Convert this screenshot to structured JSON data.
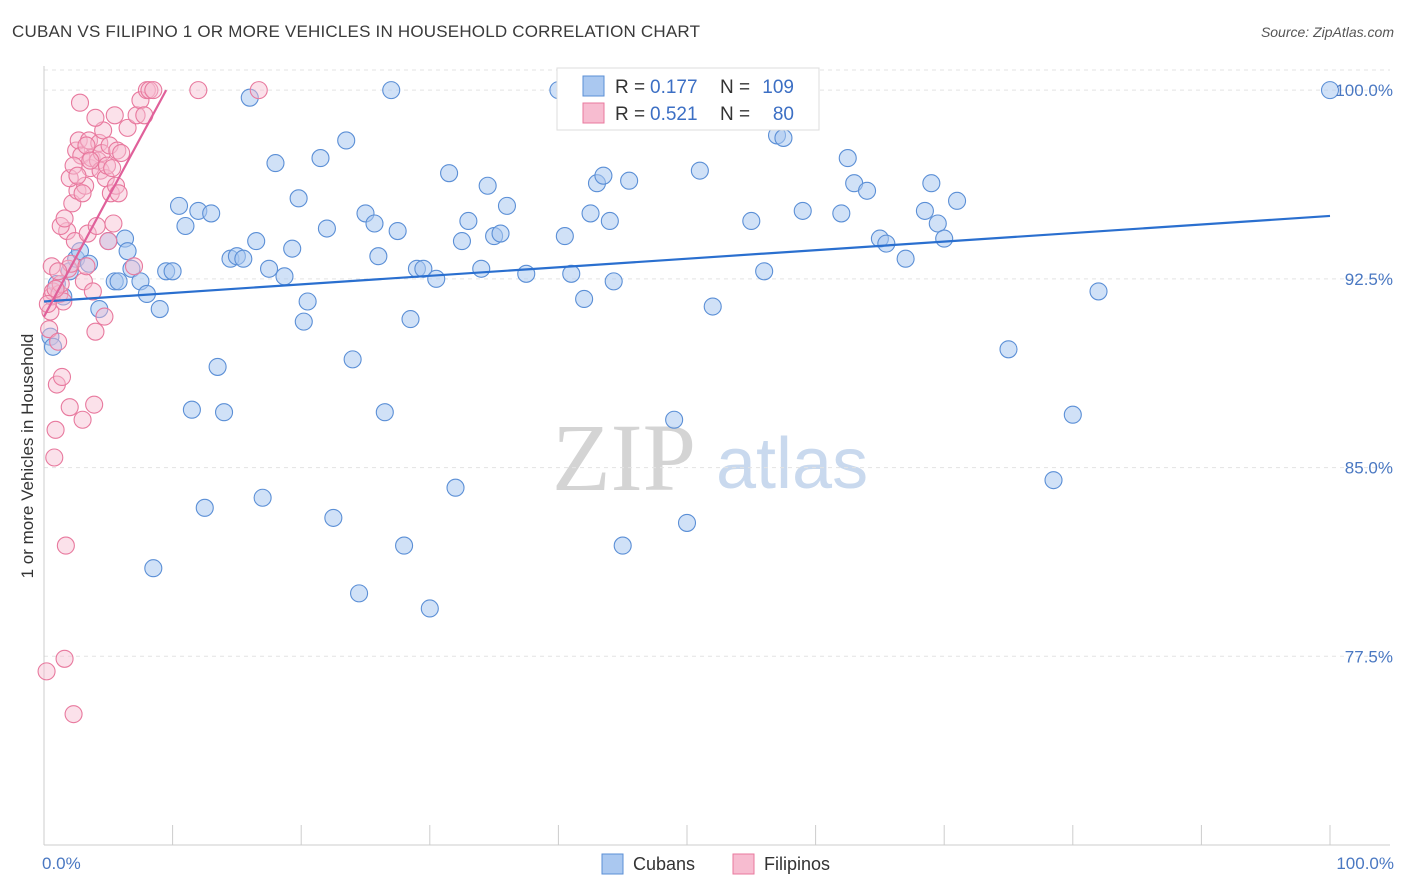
{
  "title": "CUBAN VS FILIPINO 1 OR MORE VEHICLES IN HOUSEHOLD CORRELATION CHART",
  "source": "Source: ZipAtlas.com",
  "watermark": {
    "zip": "ZIP",
    "atlas": "atlas"
  },
  "colors": {
    "blue_fill": "#aac8f0",
    "blue_stroke": "#5b8fd6",
    "blue_line": "#2a6fcf",
    "pink_fill": "#f7bcd0",
    "pink_stroke": "#e8799e",
    "pink_line": "#e0609a",
    "grid": "#e3e3e3",
    "axis_text": "#4a78c2"
  },
  "legend": {
    "rows": [
      {
        "r_label": "R =",
        "r_value": "0.177",
        "n_label": "N =",
        "n_value": "109"
      },
      {
        "r_label": "R =",
        "r_value": "0.521",
        "n_label": "N =",
        "n_value": "80"
      }
    ]
  },
  "bottom_legend": [
    "Cubans",
    "Filipinos"
  ],
  "chart_data": {
    "type": "scatter",
    "title": "CUBAN VS FILIPINO 1 OR MORE VEHICLES IN HOUSEHOLD CORRELATION CHART",
    "xlabel": "",
    "ylabel": "1 or more Vehicles in Household",
    "xlim": [
      0,
      100
    ],
    "ylim": [
      70.0,
      100.8
    ],
    "x_ticks": [
      "0.0%",
      "100.0%"
    ],
    "y_ticks": [
      {
        "value": 100.0,
        "label": "100.0%"
      },
      {
        "value": 92.5,
        "label": "92.5%"
      },
      {
        "value": 85.0,
        "label": "85.0%"
      },
      {
        "value": 77.5,
        "label": "77.5%"
      }
    ],
    "grid": true,
    "legend_position": "top-center",
    "series": [
      {
        "name": "Cubans",
        "trend": {
          "x0": 0,
          "y0": 91.6,
          "x1": 100,
          "y1": 95.0
        },
        "points": [
          [
            0.5,
            90.2
          ],
          [
            0.7,
            89.8
          ],
          [
            1.0,
            92.3
          ],
          [
            1.5,
            91.8
          ],
          [
            2.0,
            92.8
          ],
          [
            2.5,
            93.3
          ],
          [
            2.8,
            93.6
          ],
          [
            3.5,
            93.1
          ],
          [
            4.3,
            91.3
          ],
          [
            5.0,
            94.0
          ],
          [
            5.5,
            92.4
          ],
          [
            5.8,
            92.4
          ],
          [
            6.3,
            94.1
          ],
          [
            6.5,
            93.6
          ],
          [
            6.8,
            92.9
          ],
          [
            7.5,
            92.4
          ],
          [
            8.0,
            91.9
          ],
          [
            8.5,
            81.0
          ],
          [
            9.0,
            91.3
          ],
          [
            9.5,
            92.8
          ],
          [
            10.0,
            92.8
          ],
          [
            10.5,
            95.4
          ],
          [
            11.0,
            94.6
          ],
          [
            11.5,
            87.3
          ],
          [
            12.0,
            95.2
          ],
          [
            12.5,
            83.4
          ],
          [
            13.0,
            95.1
          ],
          [
            13.5,
            89.0
          ],
          [
            14.0,
            87.2
          ],
          [
            14.5,
            93.3
          ],
          [
            15.0,
            93.4
          ],
          [
            15.5,
            93.3
          ],
          [
            16.0,
            99.7
          ],
          [
            16.5,
            94.0
          ],
          [
            17.0,
            83.8
          ],
          [
            17.5,
            92.9
          ],
          [
            18.0,
            97.1
          ],
          [
            18.7,
            92.6
          ],
          [
            19.3,
            93.7
          ],
          [
            19.8,
            95.7
          ],
          [
            20.2,
            90.8
          ],
          [
            20.5,
            91.6
          ],
          [
            21.5,
            97.3
          ],
          [
            22.0,
            94.5
          ],
          [
            22.5,
            83.0
          ],
          [
            23.5,
            98.0
          ],
          [
            24.0,
            89.3
          ],
          [
            24.5,
            80.0
          ],
          [
            25.0,
            95.1
          ],
          [
            25.7,
            94.7
          ],
          [
            26.0,
            93.4
          ],
          [
            26.5,
            87.2
          ],
          [
            27.0,
            100.0
          ],
          [
            27.5,
            94.4
          ],
          [
            28.0,
            81.9
          ],
          [
            28.5,
            90.9
          ],
          [
            29.0,
            92.9
          ],
          [
            29.5,
            92.9
          ],
          [
            30.0,
            79.4
          ],
          [
            30.5,
            92.5
          ],
          [
            31.5,
            96.7
          ],
          [
            32.0,
            84.2
          ],
          [
            32.5,
            94.0
          ],
          [
            33.0,
            94.8
          ],
          [
            34.0,
            92.9
          ],
          [
            34.5,
            96.2
          ],
          [
            35.0,
            94.2
          ],
          [
            35.5,
            94.3
          ],
          [
            36.0,
            95.4
          ],
          [
            37.5,
            92.7
          ],
          [
            40.0,
            100.0
          ],
          [
            40.5,
            94.2
          ],
          [
            41.0,
            92.7
          ],
          [
            42.0,
            91.7
          ],
          [
            42.5,
            95.1
          ],
          [
            43.0,
            96.3
          ],
          [
            43.5,
            96.6
          ],
          [
            44.0,
            94.8
          ],
          [
            44.3,
            92.4
          ],
          [
            45.0,
            81.9
          ],
          [
            45.5,
            96.4
          ],
          [
            49.0,
            86.9
          ],
          [
            50.0,
            82.8
          ],
          [
            51.0,
            96.8
          ],
          [
            52.0,
            91.4
          ],
          [
            54.5,
            99.2
          ],
          [
            55.0,
            94.8
          ],
          [
            55.5,
            99.0
          ],
          [
            56.0,
            92.8
          ],
          [
            57.0,
            98.2
          ],
          [
            57.5,
            98.1
          ],
          [
            59.0,
            95.2
          ],
          [
            62.0,
            95.1
          ],
          [
            62.5,
            97.3
          ],
          [
            63.0,
            96.3
          ],
          [
            64.0,
            96.0
          ],
          [
            65.0,
            94.1
          ],
          [
            65.5,
            93.9
          ],
          [
            67.0,
            93.3
          ],
          [
            68.5,
            95.2
          ],
          [
            69.0,
            96.3
          ],
          [
            69.5,
            94.7
          ],
          [
            70.0,
            94.1
          ],
          [
            71.0,
            95.6
          ],
          [
            75.0,
            89.7
          ],
          [
            78.5,
            84.5
          ],
          [
            80.0,
            87.1
          ],
          [
            82.0,
            92.0
          ],
          [
            100.0,
            100.0
          ]
        ]
      },
      {
        "name": "Filipinos",
        "trend": {
          "x0": 0,
          "y0": 91.0,
          "x1": 9.5,
          "y1": 100.0
        },
        "points": [
          [
            0.2,
            76.9
          ],
          [
            0.4,
            90.5
          ],
          [
            0.5,
            91.2
          ],
          [
            0.6,
            91.8
          ],
          [
            0.7,
            92.0
          ],
          [
            0.8,
            85.4
          ],
          [
            0.9,
            86.5
          ],
          [
            1.0,
            88.3
          ],
          [
            1.1,
            90.0
          ],
          [
            1.2,
            91.9
          ],
          [
            1.3,
            92.3
          ],
          [
            1.4,
            88.6
          ],
          [
            1.5,
            91.6
          ],
          [
            1.6,
            77.4
          ],
          [
            1.7,
            81.9
          ],
          [
            1.8,
            94.4
          ],
          [
            1.9,
            92.9
          ],
          [
            2.0,
            87.4
          ],
          [
            2.1,
            93.1
          ],
          [
            2.2,
            95.5
          ],
          [
            2.3,
            75.2
          ],
          [
            2.4,
            94.0
          ],
          [
            2.5,
            97.6
          ],
          [
            2.6,
            96.0
          ],
          [
            2.7,
            98.0
          ],
          [
            2.8,
            99.5
          ],
          [
            2.9,
            97.4
          ],
          [
            3.0,
            86.9
          ],
          [
            3.1,
            92.4
          ],
          [
            3.2,
            96.2
          ],
          [
            3.3,
            93.0
          ],
          [
            3.4,
            94.3
          ],
          [
            3.5,
            98.0
          ],
          [
            3.6,
            96.9
          ],
          [
            3.7,
            97.3
          ],
          [
            3.8,
            92.0
          ],
          [
            3.9,
            87.5
          ],
          [
            4.0,
            90.4
          ],
          [
            4.1,
            94.6
          ],
          [
            4.2,
            97.2
          ],
          [
            4.3,
            97.9
          ],
          [
            4.4,
            96.8
          ],
          [
            4.5,
            97.5
          ],
          [
            4.6,
            98.4
          ],
          [
            4.7,
            91.0
          ],
          [
            4.8,
            96.5
          ],
          [
            4.9,
            97.0
          ],
          [
            5.0,
            94.0
          ],
          [
            5.1,
            97.8
          ],
          [
            5.2,
            95.9
          ],
          [
            5.3,
            96.9
          ],
          [
            5.4,
            94.7
          ],
          [
            5.5,
            99.0
          ],
          [
            5.6,
            96.2
          ],
          [
            5.7,
            97.6
          ],
          [
            5.8,
            95.9
          ],
          [
            6.0,
            97.5
          ],
          [
            6.5,
            98.5
          ],
          [
            7.0,
            93.0
          ],
          [
            7.2,
            99.0
          ],
          [
            7.5,
            99.6
          ],
          [
            7.8,
            99.0
          ],
          [
            8.0,
            100.0
          ],
          [
            8.2,
            100.0
          ],
          [
            8.5,
            100.0
          ],
          [
            12.0,
            100.0
          ],
          [
            16.7,
            100.0
          ],
          [
            0.3,
            91.5
          ],
          [
            0.6,
            93.0
          ],
          [
            0.9,
            92.1
          ],
          [
            1.1,
            92.8
          ],
          [
            1.3,
            94.6
          ],
          [
            1.6,
            94.9
          ],
          [
            2.0,
            96.5
          ],
          [
            2.3,
            97.0
          ],
          [
            2.6,
            96.6
          ],
          [
            3.0,
            95.9
          ],
          [
            3.3,
            97.8
          ],
          [
            3.6,
            97.2
          ],
          [
            4.0,
            98.9
          ]
        ]
      }
    ]
  }
}
